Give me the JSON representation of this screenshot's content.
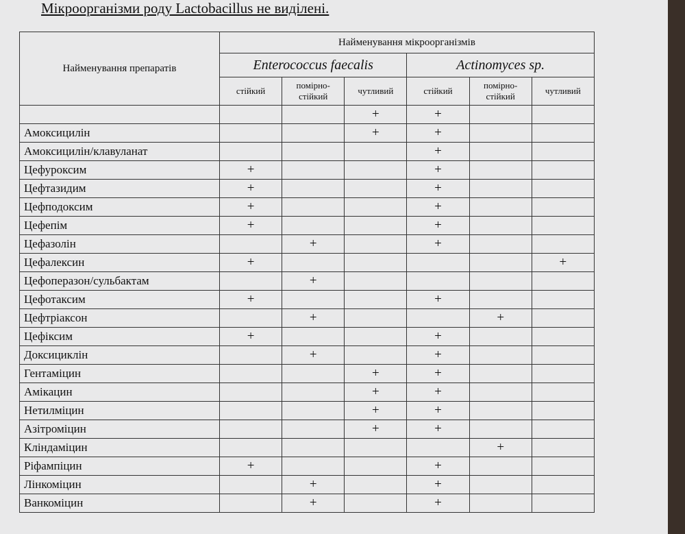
{
  "header": {
    "title": "Мікроорганізми роду Lactobacillus не виділені."
  },
  "table": {
    "drug_column": "Найменування препаратів",
    "group": "Найменування мікроорганізмів",
    "organisms": [
      "Enterococcus faecalis",
      "Actinomyces sp."
    ],
    "levels": [
      "стійкий",
      "помірно-стійкий",
      "чутливий"
    ],
    "rows": [
      [
        null,
        null,
        null,
        "+",
        "+",
        null,
        null
      ],
      [
        "Амоксицилін",
        null,
        null,
        "+",
        "+",
        null,
        null
      ],
      [
        "Амоксицилін/клавуланат",
        null,
        null,
        null,
        "+",
        null,
        null
      ],
      [
        "Цефуроксим",
        "+",
        null,
        null,
        "+",
        null,
        null
      ],
      [
        "Цефтазидим",
        "+",
        null,
        null,
        "+",
        null,
        null
      ],
      [
        "Цефподоксим",
        "+",
        null,
        null,
        "+",
        null,
        null
      ],
      [
        "Цефепім",
        "+",
        null,
        null,
        "+",
        null,
        null
      ],
      [
        "Цефазолін",
        null,
        "+",
        null,
        "+",
        null,
        null
      ],
      [
        "Цефалексин",
        "+",
        null,
        null,
        null,
        null,
        "+"
      ],
      [
        "Цефоперазон/сульбактам",
        null,
        "+",
        null,
        null,
        null,
        null
      ],
      [
        "Цефотаксим",
        "+",
        null,
        null,
        "+",
        null,
        null
      ],
      [
        "Цефтріаксон",
        null,
        "+",
        null,
        null,
        "+",
        null
      ],
      [
        "Цефіксим",
        "+",
        null,
        null,
        "+",
        null,
        null
      ],
      [
        "Доксициклін",
        null,
        "+",
        null,
        "+",
        null,
        null
      ],
      [
        "Гентаміцин",
        null,
        null,
        "+",
        "+",
        null,
        null
      ],
      [
        "Амікацин",
        null,
        null,
        "+",
        "+",
        null,
        null
      ],
      [
        "Нетилміцин",
        null,
        null,
        "+",
        "+",
        null,
        null
      ],
      [
        "Азітроміцин",
        null,
        null,
        "+",
        "+",
        null,
        null
      ],
      [
        "Кліндаміцин",
        null,
        null,
        null,
        null,
        "+",
        null
      ],
      [
        "Ріфампіцин",
        "+",
        null,
        null,
        "+",
        null,
        null
      ],
      [
        "Лінкоміцин",
        null,
        "+",
        null,
        "+",
        null,
        null
      ],
      [
        "Ванкоміцин",
        null,
        "+",
        null,
        "+",
        null,
        null
      ]
    ]
  }
}
